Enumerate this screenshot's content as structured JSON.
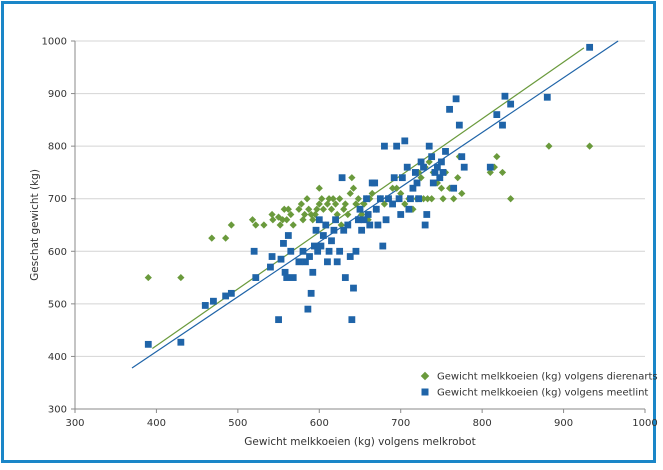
{
  "chart_data": {
    "type": "scatter",
    "title": "",
    "xlabel": "Gewicht melkkoeien (kg) volgens melkrobot",
    "ylabel": "Geschat gewicht (kg)",
    "xlim": [
      300,
      1000
    ],
    "ylim": [
      300,
      1000
    ],
    "x_ticks": [
      "300",
      "400",
      "500",
      "600",
      "700",
      "800",
      "900",
      "1000"
    ],
    "y_ticks": [
      "300",
      "400",
      "500",
      "600",
      "700",
      "800",
      "900",
      "1000"
    ],
    "grid": "horizontal",
    "legend_position": "bottom-right",
    "series": [
      {
        "name": "Gewicht melkkoeien (kg) volgens dierenarts",
        "marker": "diamond",
        "color": "#6a9a3c",
        "points": [
          [
            390,
            550
          ],
          [
            430,
            550
          ],
          [
            468,
            625
          ],
          [
            485,
            625
          ],
          [
            492,
            650
          ],
          [
            518,
            660
          ],
          [
            522,
            650
          ],
          [
            532,
            650
          ],
          [
            542,
            670
          ],
          [
            543,
            660
          ],
          [
            550,
            665
          ],
          [
            552,
            650
          ],
          [
            555,
            660
          ],
          [
            557,
            680
          ],
          [
            560,
            660
          ],
          [
            562,
            680
          ],
          [
            565,
            670
          ],
          [
            568,
            650
          ],
          [
            575,
            680
          ],
          [
            578,
            690
          ],
          [
            580,
            660
          ],
          [
            582,
            670
          ],
          [
            585,
            700
          ],
          [
            587,
            680
          ],
          [
            590,
            670
          ],
          [
            592,
            660
          ],
          [
            595,
            670
          ],
          [
            597,
            680
          ],
          [
            600,
            690
          ],
          [
            600,
            720
          ],
          [
            603,
            700
          ],
          [
            605,
            680
          ],
          [
            608,
            650
          ],
          [
            610,
            690
          ],
          [
            612,
            700
          ],
          [
            615,
            680
          ],
          [
            617,
            700
          ],
          [
            620,
            690
          ],
          [
            622,
            670
          ],
          [
            625,
            700
          ],
          [
            627,
            650
          ],
          [
            630,
            680
          ],
          [
            632,
            690
          ],
          [
            635,
            670
          ],
          [
            638,
            710
          ],
          [
            640,
            740
          ],
          [
            642,
            720
          ],
          [
            645,
            690
          ],
          [
            648,
            700
          ],
          [
            650,
            680
          ],
          [
            652,
            670
          ],
          [
            655,
            690
          ],
          [
            658,
            700
          ],
          [
            660,
            660
          ],
          [
            662,
            700
          ],
          [
            665,
            710
          ],
          [
            670,
            680
          ],
          [
            675,
            700
          ],
          [
            680,
            690
          ],
          [
            685,
            700
          ],
          [
            690,
            720
          ],
          [
            695,
            720
          ],
          [
            700,
            710
          ],
          [
            705,
            690
          ],
          [
            710,
            700
          ],
          [
            715,
            680
          ],
          [
            720,
            700
          ],
          [
            722,
            750
          ],
          [
            725,
            740
          ],
          [
            728,
            700
          ],
          [
            730,
            760
          ],
          [
            733,
            700
          ],
          [
            735,
            770
          ],
          [
            738,
            700
          ],
          [
            740,
            750
          ],
          [
            745,
            730
          ],
          [
            748,
            740
          ],
          [
            750,
            720
          ],
          [
            752,
            700
          ],
          [
            755,
            750
          ],
          [
            760,
            720
          ],
          [
            765,
            700
          ],
          [
            770,
            740
          ],
          [
            772,
            780
          ],
          [
            775,
            710
          ],
          [
            810,
            750
          ],
          [
            815,
            760
          ],
          [
            818,
            780
          ],
          [
            825,
            750
          ],
          [
            835,
            700
          ],
          [
            882,
            800
          ],
          [
            932,
            800
          ]
        ]
      },
      {
        "name": "Gewicht melkkoeien (kg) volgens meetlint",
        "marker": "square",
        "color": "#1f64a8",
        "points": [
          [
            390,
            423
          ],
          [
            430,
            427
          ],
          [
            460,
            497
          ],
          [
            470,
            505
          ],
          [
            485,
            515
          ],
          [
            492,
            520
          ],
          [
            520,
            600
          ],
          [
            522,
            550
          ],
          [
            540,
            570
          ],
          [
            542,
            590
          ],
          [
            550,
            470
          ],
          [
            553,
            585
          ],
          [
            556,
            615
          ],
          [
            558,
            560
          ],
          [
            560,
            550
          ],
          [
            562,
            630
          ],
          [
            565,
            600
          ],
          [
            568,
            550
          ],
          [
            575,
            580
          ],
          [
            580,
            600
          ],
          [
            583,
            580
          ],
          [
            586,
            490
          ],
          [
            588,
            590
          ],
          [
            590,
            520
          ],
          [
            592,
            560
          ],
          [
            594,
            610
          ],
          [
            596,
            640
          ],
          [
            598,
            600
          ],
          [
            600,
            660
          ],
          [
            602,
            610
          ],
          [
            605,
            630
          ],
          [
            608,
            650
          ],
          [
            610,
            580
          ],
          [
            612,
            600
          ],
          [
            615,
            620
          ],
          [
            618,
            640
          ],
          [
            620,
            660
          ],
          [
            622,
            580
          ],
          [
            625,
            600
          ],
          [
            628,
            740
          ],
          [
            630,
            640
          ],
          [
            632,
            550
          ],
          [
            635,
            650
          ],
          [
            638,
            590
          ],
          [
            640,
            470
          ],
          [
            642,
            530
          ],
          [
            645,
            600
          ],
          [
            648,
            660
          ],
          [
            650,
            680
          ],
          [
            652,
            640
          ],
          [
            655,
            660
          ],
          [
            658,
            700
          ],
          [
            660,
            670
          ],
          [
            662,
            650
          ],
          [
            665,
            730
          ],
          [
            668,
            730
          ],
          [
            670,
            680
          ],
          [
            672,
            650
          ],
          [
            675,
            700
          ],
          [
            678,
            610
          ],
          [
            680,
            800
          ],
          [
            682,
            660
          ],
          [
            685,
            700
          ],
          [
            690,
            690
          ],
          [
            692,
            740
          ],
          [
            695,
            800
          ],
          [
            698,
            700
          ],
          [
            700,
            670
          ],
          [
            702,
            740
          ],
          [
            705,
            810
          ],
          [
            708,
            760
          ],
          [
            710,
            680
          ],
          [
            712,
            700
          ],
          [
            715,
            720
          ],
          [
            718,
            750
          ],
          [
            720,
            730
          ],
          [
            722,
            700
          ],
          [
            725,
            770
          ],
          [
            728,
            760
          ],
          [
            730,
            650
          ],
          [
            732,
            670
          ],
          [
            735,
            800
          ],
          [
            738,
            780
          ],
          [
            740,
            730
          ],
          [
            742,
            750
          ],
          [
            745,
            760
          ],
          [
            748,
            740
          ],
          [
            750,
            770
          ],
          [
            752,
            750
          ],
          [
            755,
            790
          ],
          [
            760,
            870
          ],
          [
            765,
            720
          ],
          [
            768,
            890
          ],
          [
            772,
            840
          ],
          [
            775,
            780
          ],
          [
            778,
            760
          ],
          [
            810,
            760
          ],
          [
            818,
            860
          ],
          [
            825,
            840
          ],
          [
            828,
            895
          ],
          [
            835,
            880
          ],
          [
            880,
            893
          ],
          [
            932,
            988
          ]
        ]
      }
    ],
    "trendlines": [
      {
        "series": "Gewicht melkkoeien (kg) volgens dierenarts",
        "color": "#6a9a3c",
        "from": [
          395,
          415
        ],
        "to": [
          925,
          987
        ]
      },
      {
        "series": "Gewicht melkkoeien (kg) volgens meetlint",
        "color": "#1f64a8",
        "from": [
          370,
          378
        ],
        "to": [
          967,
          1000
        ]
      }
    ]
  }
}
